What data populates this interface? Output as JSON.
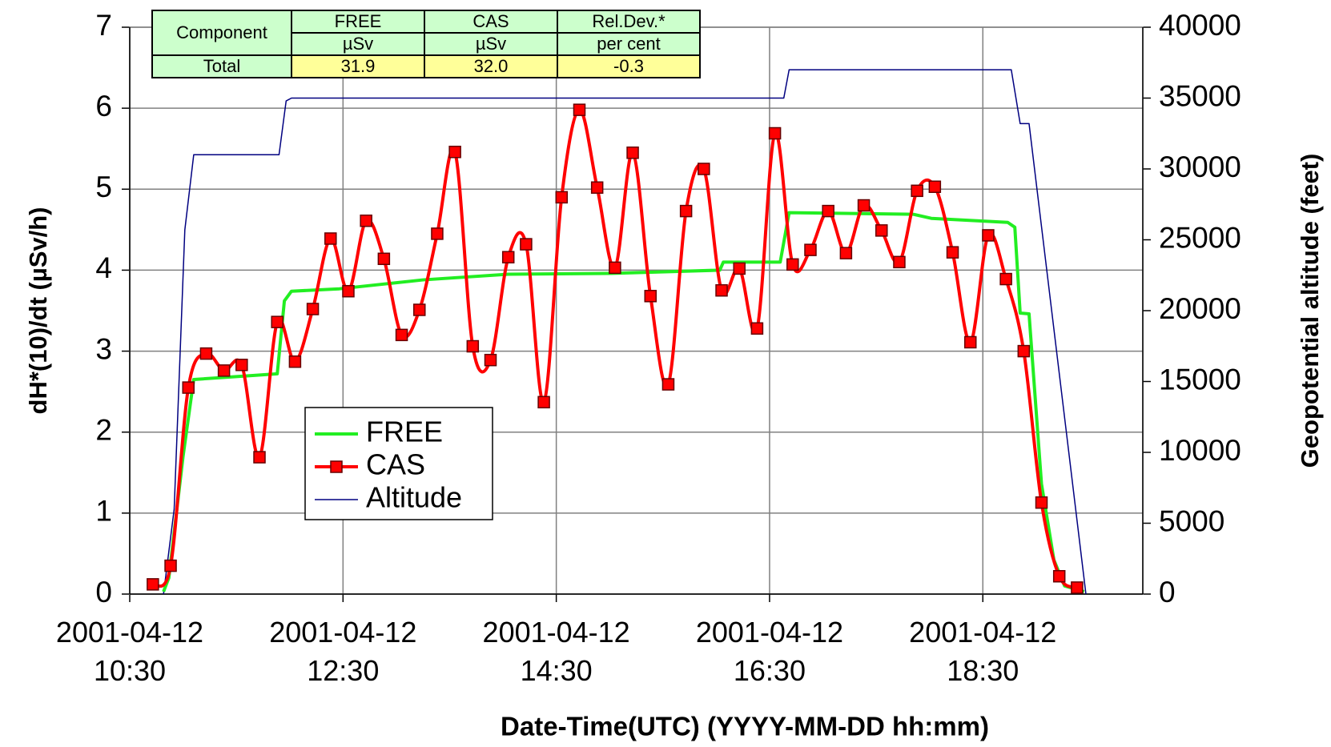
{
  "chart_data": {
    "type": "line",
    "xlabel": "Date-Time(UTC) (YYYY-MM-DD hh:mm)",
    "ylabel": "dH*(10)/dt (µSv/h)",
    "y2label": "Geopotential altitude (feet)",
    "xlim": [
      "2001-04-12T10:30",
      "2001-04-12T20:00"
    ],
    "xticks": [
      {
        "value": "2001-04-12T10:30",
        "label": "2001-04-12 10:30"
      },
      {
        "value": "2001-04-12T12:30",
        "label": "2001-04-12 12:30"
      },
      {
        "value": "2001-04-12T14:30",
        "label": "2001-04-12 14:30"
      },
      {
        "value": "2001-04-12T16:30",
        "label": "2001-04-12 16:30"
      },
      {
        "value": "2001-04-12T18:30",
        "label": "2001-04-12 18:30"
      }
    ],
    "ylim": [
      0,
      7
    ],
    "yticks": [
      0,
      1,
      2,
      3,
      4,
      5,
      6,
      7
    ],
    "y2lim": [
      0,
      40000
    ],
    "y2ticks": [
      0,
      5000,
      10000,
      15000,
      20000,
      25000,
      30000,
      35000,
      40000
    ],
    "grid": true,
    "series": [
      {
        "name": "FREE",
        "color": "#22ee22",
        "x": [
          "2001-04-12T10:49",
          "2001-04-12T10:52",
          "2001-04-12T11:00",
          "2001-04-12T11:06",
          "2001-04-12T11:40",
          "2001-04-12T11:53",
          "2001-04-12T11:57",
          "2001-04-12T12:01",
          "2001-04-12T12:28",
          "2001-04-12T13:15",
          "2001-04-12T14:03",
          "2001-04-12T15:00",
          "2001-04-12T16:02",
          "2001-04-12T16:04",
          "2001-04-12T16:36",
          "2001-04-12T16:41",
          "2001-04-12T17:51",
          "2001-04-12T18:01",
          "2001-04-12T18:44",
          "2001-04-12T18:48",
          "2001-04-12T18:51",
          "2001-04-12T18:56",
          "2001-04-12T19:03",
          "2001-04-12T19:10",
          "2001-04-12T19:16",
          "2001-04-12T19:27"
        ],
        "values": [
          0.03,
          0.2,
          1.7,
          2.65,
          2.7,
          2.72,
          3.62,
          3.74,
          3.77,
          3.88,
          3.95,
          3.96,
          4.0,
          4.1,
          4.1,
          4.71,
          4.69,
          4.64,
          4.59,
          4.53,
          3.47,
          3.46,
          1.36,
          0.42,
          0.1,
          0.03
        ]
      },
      {
        "name": "CAS",
        "color": "#ff0000",
        "x": [
          "2001-04-12T10:43",
          "2001-04-12T10:53",
          "2001-04-12T11:03",
          "2001-04-12T11:13",
          "2001-04-12T11:23",
          "2001-04-12T11:33",
          "2001-04-12T11:43",
          "2001-04-12T11:53",
          "2001-04-12T12:03",
          "2001-04-12T12:13",
          "2001-04-12T12:23",
          "2001-04-12T12:33",
          "2001-04-12T12:43",
          "2001-04-12T12:53",
          "2001-04-12T13:03",
          "2001-04-12T13:13",
          "2001-04-12T13:23",
          "2001-04-12T13:33",
          "2001-04-12T13:43",
          "2001-04-12T13:53",
          "2001-04-12T14:03",
          "2001-04-12T14:13",
          "2001-04-12T14:23",
          "2001-04-12T14:33",
          "2001-04-12T14:43",
          "2001-04-12T14:53",
          "2001-04-12T15:03",
          "2001-04-12T15:13",
          "2001-04-12T15:23",
          "2001-04-12T15:33",
          "2001-04-12T15:43",
          "2001-04-12T15:53",
          "2001-04-12T16:03",
          "2001-04-12T16:13",
          "2001-04-12T16:23",
          "2001-04-12T16:33",
          "2001-04-12T16:43",
          "2001-04-12T16:53",
          "2001-04-12T17:03",
          "2001-04-12T17:13",
          "2001-04-12T17:23",
          "2001-04-12T17:33",
          "2001-04-12T17:43",
          "2001-04-12T17:53",
          "2001-04-12T18:03",
          "2001-04-12T18:13",
          "2001-04-12T18:23",
          "2001-04-12T18:33",
          "2001-04-12T18:43",
          "2001-04-12T18:53",
          "2001-04-12T19:03",
          "2001-04-12T19:13",
          "2001-04-12T19:23"
        ],
        "values": [
          0.12,
          0.35,
          2.55,
          2.97,
          2.76,
          2.83,
          1.69,
          3.36,
          2.87,
          3.52,
          4.39,
          3.74,
          4.61,
          4.14,
          3.2,
          3.51,
          4.45,
          5.46,
          3.06,
          2.89,
          4.16,
          4.32,
          2.37,
          4.9,
          5.98,
          5.02,
          4.03,
          5.45,
          3.68,
          2.59,
          4.73,
          5.25,
          3.75,
          4.02,
          3.28,
          5.69,
          4.07,
          4.25,
          4.73,
          4.21,
          4.8,
          4.49,
          4.1,
          4.98,
          5.03,
          4.22,
          3.11,
          4.43,
          3.89,
          3.0,
          1.13,
          0.22,
          0.08
        ]
      },
      {
        "name": "Altitude",
        "color": "#000080",
        "axis": "y2",
        "x": [
          "2001-04-12T10:49",
          "2001-04-12T10:55",
          "2001-04-12T11:01",
          "2001-04-12T11:06",
          "2001-04-12T11:54",
          "2001-04-12T11:58",
          "2001-04-12T12:01",
          "2001-04-12T13:15",
          "2001-04-12T16:38",
          "2001-04-12T16:41",
          "2001-04-12T18:46",
          "2001-04-12T18:51",
          "2001-04-12T18:56",
          "2001-04-12T19:28"
        ],
        "values": [
          0,
          6000,
          25700,
          31000,
          31000,
          34800,
          35000,
          35000,
          35000,
          37000,
          37000,
          33200,
          33200,
          0
        ]
      }
    ]
  },
  "table": {
    "header": [
      [
        "Component",
        "FREE",
        "CAS",
        "Rel.Dev.*"
      ],
      [
        "µSv",
        "µSv",
        "per cent"
      ]
    ],
    "rows": [
      [
        "Total",
        "31.9",
        "32.0",
        "-0.3"
      ]
    ]
  }
}
